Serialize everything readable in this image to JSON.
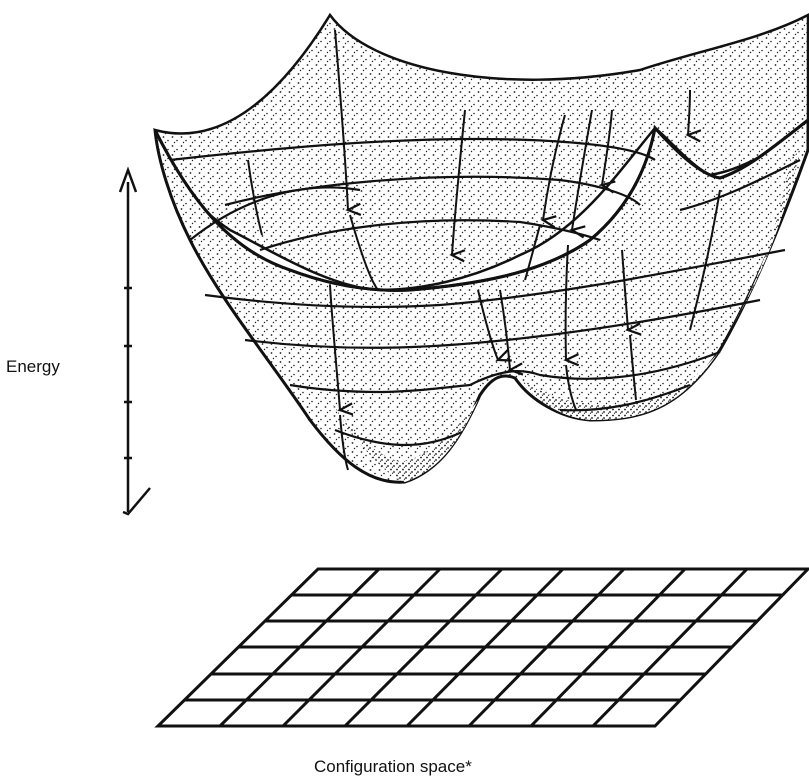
{
  "labels": {
    "energy": "Energy",
    "configuration_space": "Configuration space*"
  },
  "colors": {
    "ink": "#111111",
    "paper": "#ffffff"
  },
  "elements": {
    "energy_axis": "vertical double-headed arrow with tick marks",
    "surface": "stippled energy landscape with two minima",
    "flow_arrows": "descending trajectories into basins",
    "grid": "configuration space grid, 6 rows by 8 columns"
  }
}
